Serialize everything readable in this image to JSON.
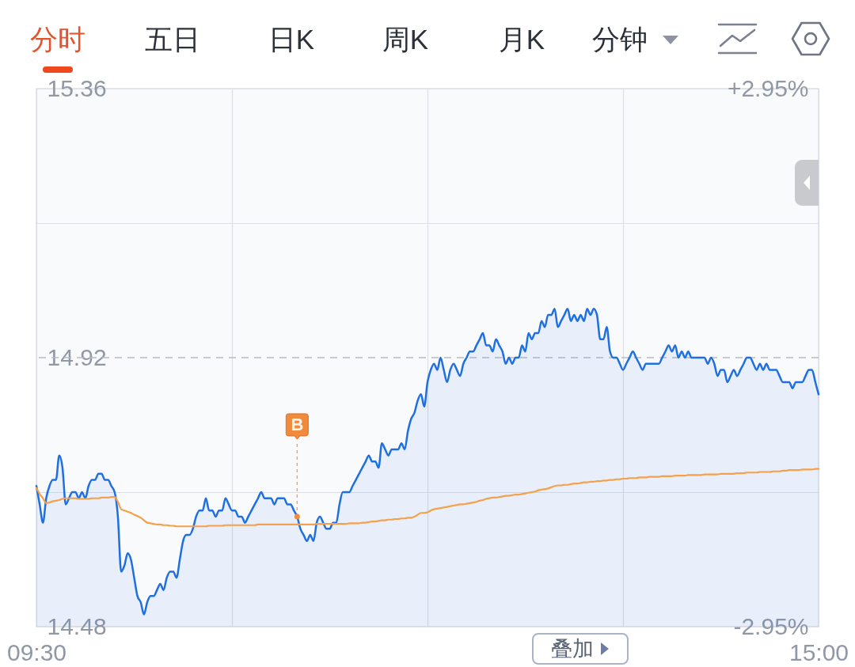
{
  "chart_data": {
    "type": "line",
    "annotations": [
      "分时",
      "五日",
      "日K",
      "周K",
      "月K",
      "分钟",
      "叠加"
    ],
    "categories": [
      "09:30",
      null,
      null,
      null,
      null,
      null,
      null,
      null,
      null,
      null,
      null,
      null,
      null,
      null,
      null,
      null,
      null,
      null,
      null,
      null,
      null,
      null,
      null,
      null,
      null,
      null,
      null,
      null,
      null,
      null,
      null,
      null,
      null,
      null,
      null,
      null,
      null,
      null,
      null,
      null,
      null,
      null,
      null,
      null,
      null,
      null,
      null,
      null,
      null,
      null,
      null,
      null,
      null,
      null,
      null,
      null,
      null,
      null,
      null,
      null,
      null,
      null,
      null,
      null,
      null,
      null,
      null,
      null,
      null,
      null,
      null,
      null,
      null,
      null,
      null,
      null,
      null,
      null,
      null,
      null,
      null,
      null,
      null,
      null,
      null,
      null,
      null,
      null,
      null,
      null,
      null,
      null,
      null,
      null,
      null,
      null,
      null,
      null,
      null,
      null,
      null,
      null,
      null,
      null,
      null,
      null,
      null,
      null,
      null,
      null,
      null,
      null,
      null,
      null,
      null,
      null,
      null,
      null,
      null,
      null,
      null,
      null,
      null,
      null,
      null,
      null,
      null,
      null,
      null,
      null,
      null,
      null,
      null,
      null,
      null,
      null,
      null,
      null,
      null,
      null,
      null,
      null,
      null,
      null,
      null,
      null,
      null,
      null,
      null,
      null,
      null,
      null,
      null,
      null,
      null,
      null,
      null,
      null,
      null,
      null,
      null,
      null,
      null,
      null,
      null,
      null,
      null,
      null,
      null,
      null,
      null,
      null,
      null,
      null,
      null,
      null,
      null,
      null,
      null,
      null,
      null,
      null,
      null,
      null,
      null,
      null,
      null,
      null,
      null,
      null,
      null,
      null,
      null,
      null,
      null,
      null,
      null,
      null,
      null,
      null,
      null,
      null,
      null,
      null,
      null,
      null,
      null,
      null,
      null,
      null,
      null,
      null,
      null,
      null,
      null,
      null,
      null,
      null,
      null,
      null,
      null,
      null,
      null,
      null,
      null,
      null,
      null,
      null,
      null,
      null,
      null,
      null,
      null,
      null,
      null,
      null,
      null,
      null,
      null,
      null,
      "15:00"
    ],
    "ylim": [
      14.48,
      15.36
    ],
    "yticks": [
      14.48,
      14.92,
      15.36
    ],
    "y2lim": [
      -2.95,
      2.95
    ],
    "y2ticks": [
      {
        "value": -2.95,
        "label": "-2.95%"
      },
      {
        "value": 2.95,
        "label": "+2.95%"
      }
    ],
    "ref_lines": [
      {
        "axis": "y",
        "value": 14.92,
        "line_style": "dashed",
        "color": "#b6bac2"
      }
    ],
    "grid": true,
    "series": [
      {
        "type": "area",
        "color": "#1f6fe0",
        "values": [
          14.71,
          14.68,
          14.65,
          14.69,
          14.71,
          14.72,
          14.72,
          14.76,
          14.74,
          14.68,
          14.69,
          14.7,
          14.7,
          14.69,
          14.7,
          14.69,
          14.71,
          14.72,
          14.72,
          14.73,
          14.73,
          14.72,
          14.72,
          14.71,
          14.7,
          14.66,
          14.57,
          14.58,
          14.6,
          14.59,
          14.56,
          14.53,
          14.52,
          14.5,
          14.52,
          14.53,
          14.53,
          14.54,
          14.55,
          14.54,
          14.56,
          14.57,
          14.57,
          14.56,
          14.59,
          14.62,
          14.63,
          14.63,
          14.64,
          14.66,
          14.67,
          14.67,
          14.69,
          14.67,
          14.67,
          14.66,
          14.67,
          14.67,
          14.69,
          14.68,
          14.67,
          14.67,
          14.66,
          14.66,
          14.65,
          14.66,
          14.67,
          14.68,
          14.69,
          14.7,
          14.69,
          14.69,
          14.69,
          14.68,
          14.69,
          14.69,
          14.69,
          14.68,
          14.68,
          14.67,
          14.66,
          14.64,
          14.63,
          14.62,
          14.63,
          14.62,
          14.65,
          14.66,
          14.65,
          14.64,
          14.64,
          14.65,
          14.65,
          14.68,
          14.7,
          14.7,
          14.7,
          14.71,
          14.72,
          14.73,
          14.74,
          14.75,
          14.76,
          14.75,
          14.75,
          14.74,
          14.78,
          14.77,
          14.76,
          14.77,
          14.77,
          14.77,
          14.78,
          14.77,
          14.8,
          14.82,
          14.83,
          14.85,
          14.86,
          14.84,
          14.88,
          14.9,
          14.91,
          14.9,
          14.92,
          14.9,
          14.88,
          14.9,
          14.91,
          14.9,
          14.89,
          14.91,
          14.92,
          14.93,
          14.93,
          14.94,
          14.95,
          14.96,
          14.94,
          14.94,
          14.93,
          14.95,
          14.94,
          14.93,
          14.91,
          14.92,
          14.91,
          14.92,
          14.92,
          14.94,
          14.93,
          14.96,
          14.95,
          14.96,
          14.96,
          14.98,
          14.97,
          14.99,
          14.99,
          15.0,
          14.97,
          14.98,
          14.99,
          15.0,
          14.98,
          14.99,
          14.98,
          14.99,
          14.98,
          15.0,
          14.99,
          15.0,
          14.99,
          14.95,
          14.95,
          14.97,
          14.93,
          14.92,
          14.92,
          14.91,
          14.9,
          14.91,
          14.92,
          14.93,
          14.92,
          14.91,
          14.9,
          14.91,
          14.91,
          14.91,
          14.91,
          14.91,
          14.92,
          14.93,
          14.94,
          14.93,
          14.94,
          14.92,
          14.93,
          14.92,
          14.93,
          14.92,
          14.92,
          14.92,
          14.92,
          14.92,
          14.91,
          14.92,
          14.91,
          14.89,
          14.9,
          14.9,
          14.88,
          14.89,
          14.9,
          14.89,
          14.9,
          14.91,
          14.92,
          14.92,
          14.91,
          14.9,
          14.91,
          14.9,
          14.91,
          14.9,
          14.9,
          14.9,
          14.89,
          14.88,
          14.88,
          14.88,
          14.87,
          14.88,
          14.88,
          14.88,
          14.89,
          14.9,
          14.9,
          14.88,
          14.86
        ]
      },
      {
        "color": "#f5a04a",
        "values": [
          14.707,
          14.697,
          14.69,
          14.682,
          14.683,
          14.685,
          14.686,
          14.687,
          14.689,
          14.69,
          14.69,
          14.69,
          14.69,
          14.689,
          14.689,
          14.689,
          14.689,
          14.69,
          14.69,
          14.69,
          14.691,
          14.691,
          14.691,
          14.692,
          14.692,
          14.684,
          14.672,
          14.67,
          14.668,
          14.666,
          14.663,
          14.661,
          14.658,
          14.654,
          14.65,
          14.649,
          14.648,
          14.647,
          14.647,
          14.646,
          14.646,
          14.645,
          14.645,
          14.644,
          14.644,
          14.644,
          14.644,
          14.644,
          14.644,
          14.644,
          14.644,
          14.644,
          14.644,
          14.645,
          14.645,
          14.645,
          14.645,
          14.645,
          14.646,
          14.646,
          14.646,
          14.646,
          14.646,
          14.646,
          14.646,
          14.646,
          14.646,
          14.646,
          14.647,
          14.647,
          14.647,
          14.647,
          14.647,
          14.647,
          14.647,
          14.647,
          14.647,
          14.647,
          14.647,
          14.647,
          14.647,
          14.647,
          14.647,
          14.647,
          14.647,
          14.647,
          14.648,
          14.648,
          14.648,
          14.648,
          14.648,
          14.648,
          14.648,
          14.648,
          14.648,
          14.648,
          14.649,
          14.649,
          14.649,
          14.649,
          14.65,
          14.65,
          14.651,
          14.652,
          14.652,
          14.653,
          14.654,
          14.654,
          14.655,
          14.655,
          14.656,
          14.656,
          14.657,
          14.657,
          14.658,
          14.658,
          14.66,
          14.663,
          14.666,
          14.666,
          14.667,
          14.67,
          14.672,
          14.673,
          14.674,
          14.675,
          14.676,
          14.677,
          14.678,
          14.679,
          14.68,
          14.68,
          14.681,
          14.682,
          14.683,
          14.684,
          14.686,
          14.687,
          14.689,
          14.69,
          14.691,
          14.691,
          14.692,
          14.693,
          14.694,
          14.694,
          14.695,
          14.696,
          14.696,
          14.697,
          14.698,
          14.699,
          14.7,
          14.701,
          14.703,
          14.704,
          14.705,
          14.706,
          14.708,
          14.71,
          14.711,
          14.711,
          14.712,
          14.712,
          14.713,
          14.714,
          14.714,
          14.715,
          14.716,
          14.716,
          14.717,
          14.717,
          14.718,
          14.718,
          14.719,
          14.719,
          14.72,
          14.72,
          14.721,
          14.721,
          14.722,
          14.722,
          14.723,
          14.723,
          14.723,
          14.724,
          14.724,
          14.724,
          14.725,
          14.725,
          14.725,
          14.725,
          14.726,
          14.726,
          14.726,
          14.726,
          14.727,
          14.727,
          14.727,
          14.727,
          14.728,
          14.728,
          14.728,
          14.728,
          14.728,
          14.729,
          14.729,
          14.729,
          14.729,
          14.729,
          14.73,
          14.73,
          14.73,
          14.73,
          14.73,
          14.731,
          14.731,
          14.731,
          14.732,
          14.732,
          14.732,
          14.732,
          14.733,
          14.733,
          14.733,
          14.733,
          14.734,
          14.734,
          14.734,
          14.735,
          14.735,
          14.736,
          14.736,
          14.736,
          14.736,
          14.737,
          14.737,
          14.737,
          14.737,
          14.738,
          14.738
        ]
      },
      {
        "type": "scatter",
        "name": "B",
        "color": "#f08a3c",
        "values": [
          null,
          null,
          null,
          null,
          null,
          null,
          null,
          null,
          null,
          null,
          null,
          null,
          null,
          null,
          null,
          null,
          null,
          null,
          null,
          null,
          null,
          null,
          null,
          null,
          null,
          null,
          null,
          null,
          null,
          null,
          null,
          null,
          null,
          null,
          null,
          null,
          null,
          null,
          null,
          null,
          null,
          null,
          null,
          null,
          null,
          null,
          null,
          null,
          null,
          null,
          null,
          null,
          null,
          null,
          null,
          null,
          null,
          null,
          null,
          null,
          null,
          null,
          null,
          null,
          null,
          null,
          null,
          null,
          null,
          null,
          null,
          null,
          null,
          null,
          null,
          null,
          null,
          null,
          null,
          null,
          14.66,
          null,
          null,
          null,
          null,
          null,
          null,
          null,
          null,
          null,
          null,
          null,
          null,
          null,
          null,
          null,
          null,
          null,
          null,
          null,
          null,
          null,
          null,
          null,
          null,
          null,
          null,
          null,
          null,
          null,
          null,
          null,
          null,
          null,
          null,
          null,
          null,
          null,
          null,
          null,
          null,
          null,
          null,
          null,
          null,
          null,
          null,
          null,
          null,
          null,
          null,
          null,
          null,
          null,
          null,
          null,
          null,
          null,
          null,
          null,
          null,
          null,
          null,
          null,
          null,
          null,
          null,
          null,
          null,
          null,
          null,
          null,
          null,
          null,
          null,
          null,
          null,
          null,
          null,
          null,
          null,
          null,
          null,
          null,
          null,
          null,
          null,
          null,
          null,
          null,
          null,
          null,
          null,
          null,
          null,
          null,
          null,
          null,
          null,
          null,
          null,
          null,
          null,
          null,
          null,
          null,
          null,
          null,
          null,
          null,
          null,
          null,
          null,
          null,
          null,
          null,
          null,
          null,
          null,
          null,
          null,
          null,
          null,
          null,
          null,
          null,
          null,
          null,
          null,
          null,
          null,
          null,
          null,
          null,
          null,
          null,
          null,
          null,
          null,
          null,
          null,
          null,
          null,
          null,
          null,
          null,
          null,
          null,
          null,
          null,
          null,
          null,
          null,
          null,
          null,
          null,
          null,
          null,
          null,
          null,
          null
        ]
      }
    ]
  }
}
